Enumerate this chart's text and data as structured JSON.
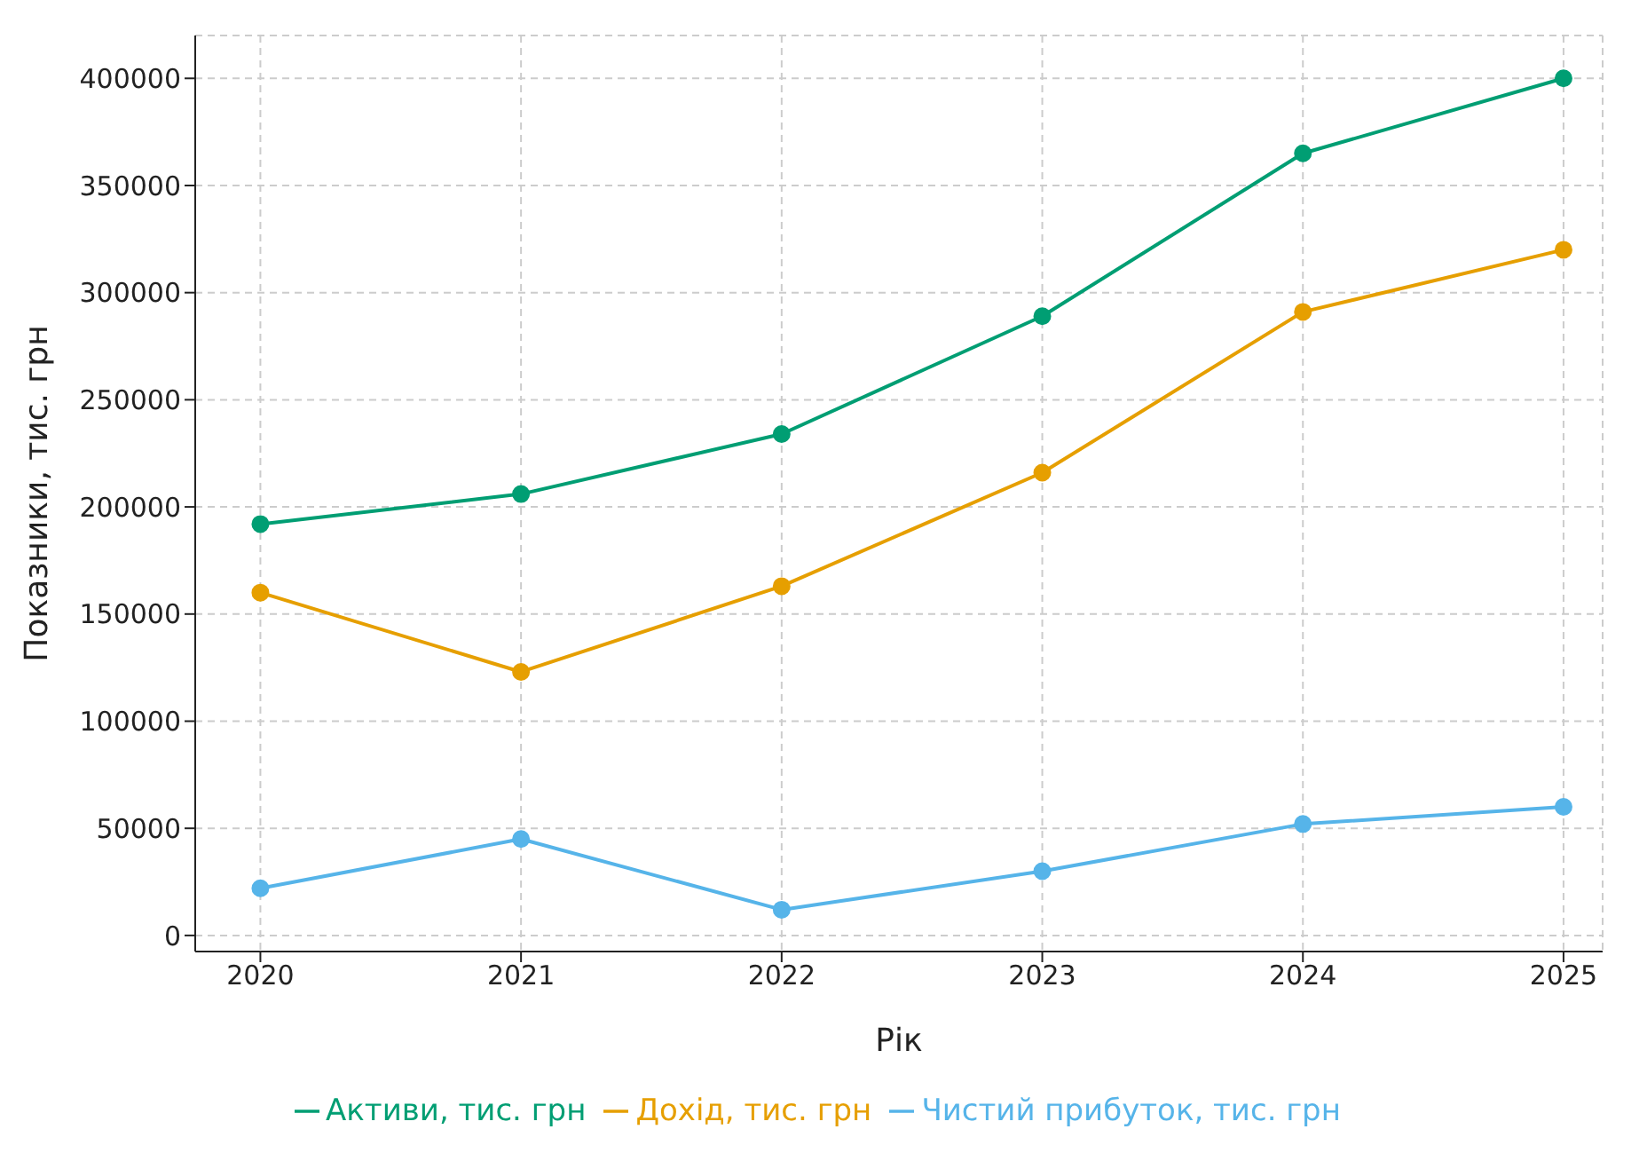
{
  "chart_data": {
    "type": "line",
    "xlabel": "Рік",
    "ylabel": "Показники, тис. грн",
    "x": [
      2020,
      2021,
      2022,
      2023,
      2024,
      2025
    ],
    "series": [
      {
        "name": "Дохід, тис. грн",
        "color": "#e69f00",
        "values": [
          160000,
          123000,
          163000,
          216000,
          291000,
          320000
        ]
      },
      {
        "name": "Чистий прибуток, тис. грн",
        "color": "#56b4e9",
        "values": [
          22000,
          45000,
          12000,
          30000,
          52000,
          60000
        ]
      },
      {
        "name": "Активи, тис. грн",
        "color": "#009e73",
        "values": [
          192000,
          206000,
          234000,
          289000,
          365000,
          400000
        ]
      }
    ],
    "xlim": [
      2019.75,
      2025.15
    ],
    "xticks": [
      2020,
      2021,
      2022,
      2023,
      2024,
      2025
    ],
    "ylim": [
      -7500,
      420000
    ],
    "yticks": [
      0,
      50000,
      100000,
      150000,
      200000,
      250000,
      300000,
      350000,
      400000
    ],
    "grid": true,
    "legend": "bottom",
    "marker": "circle",
    "line_style": "solid"
  }
}
